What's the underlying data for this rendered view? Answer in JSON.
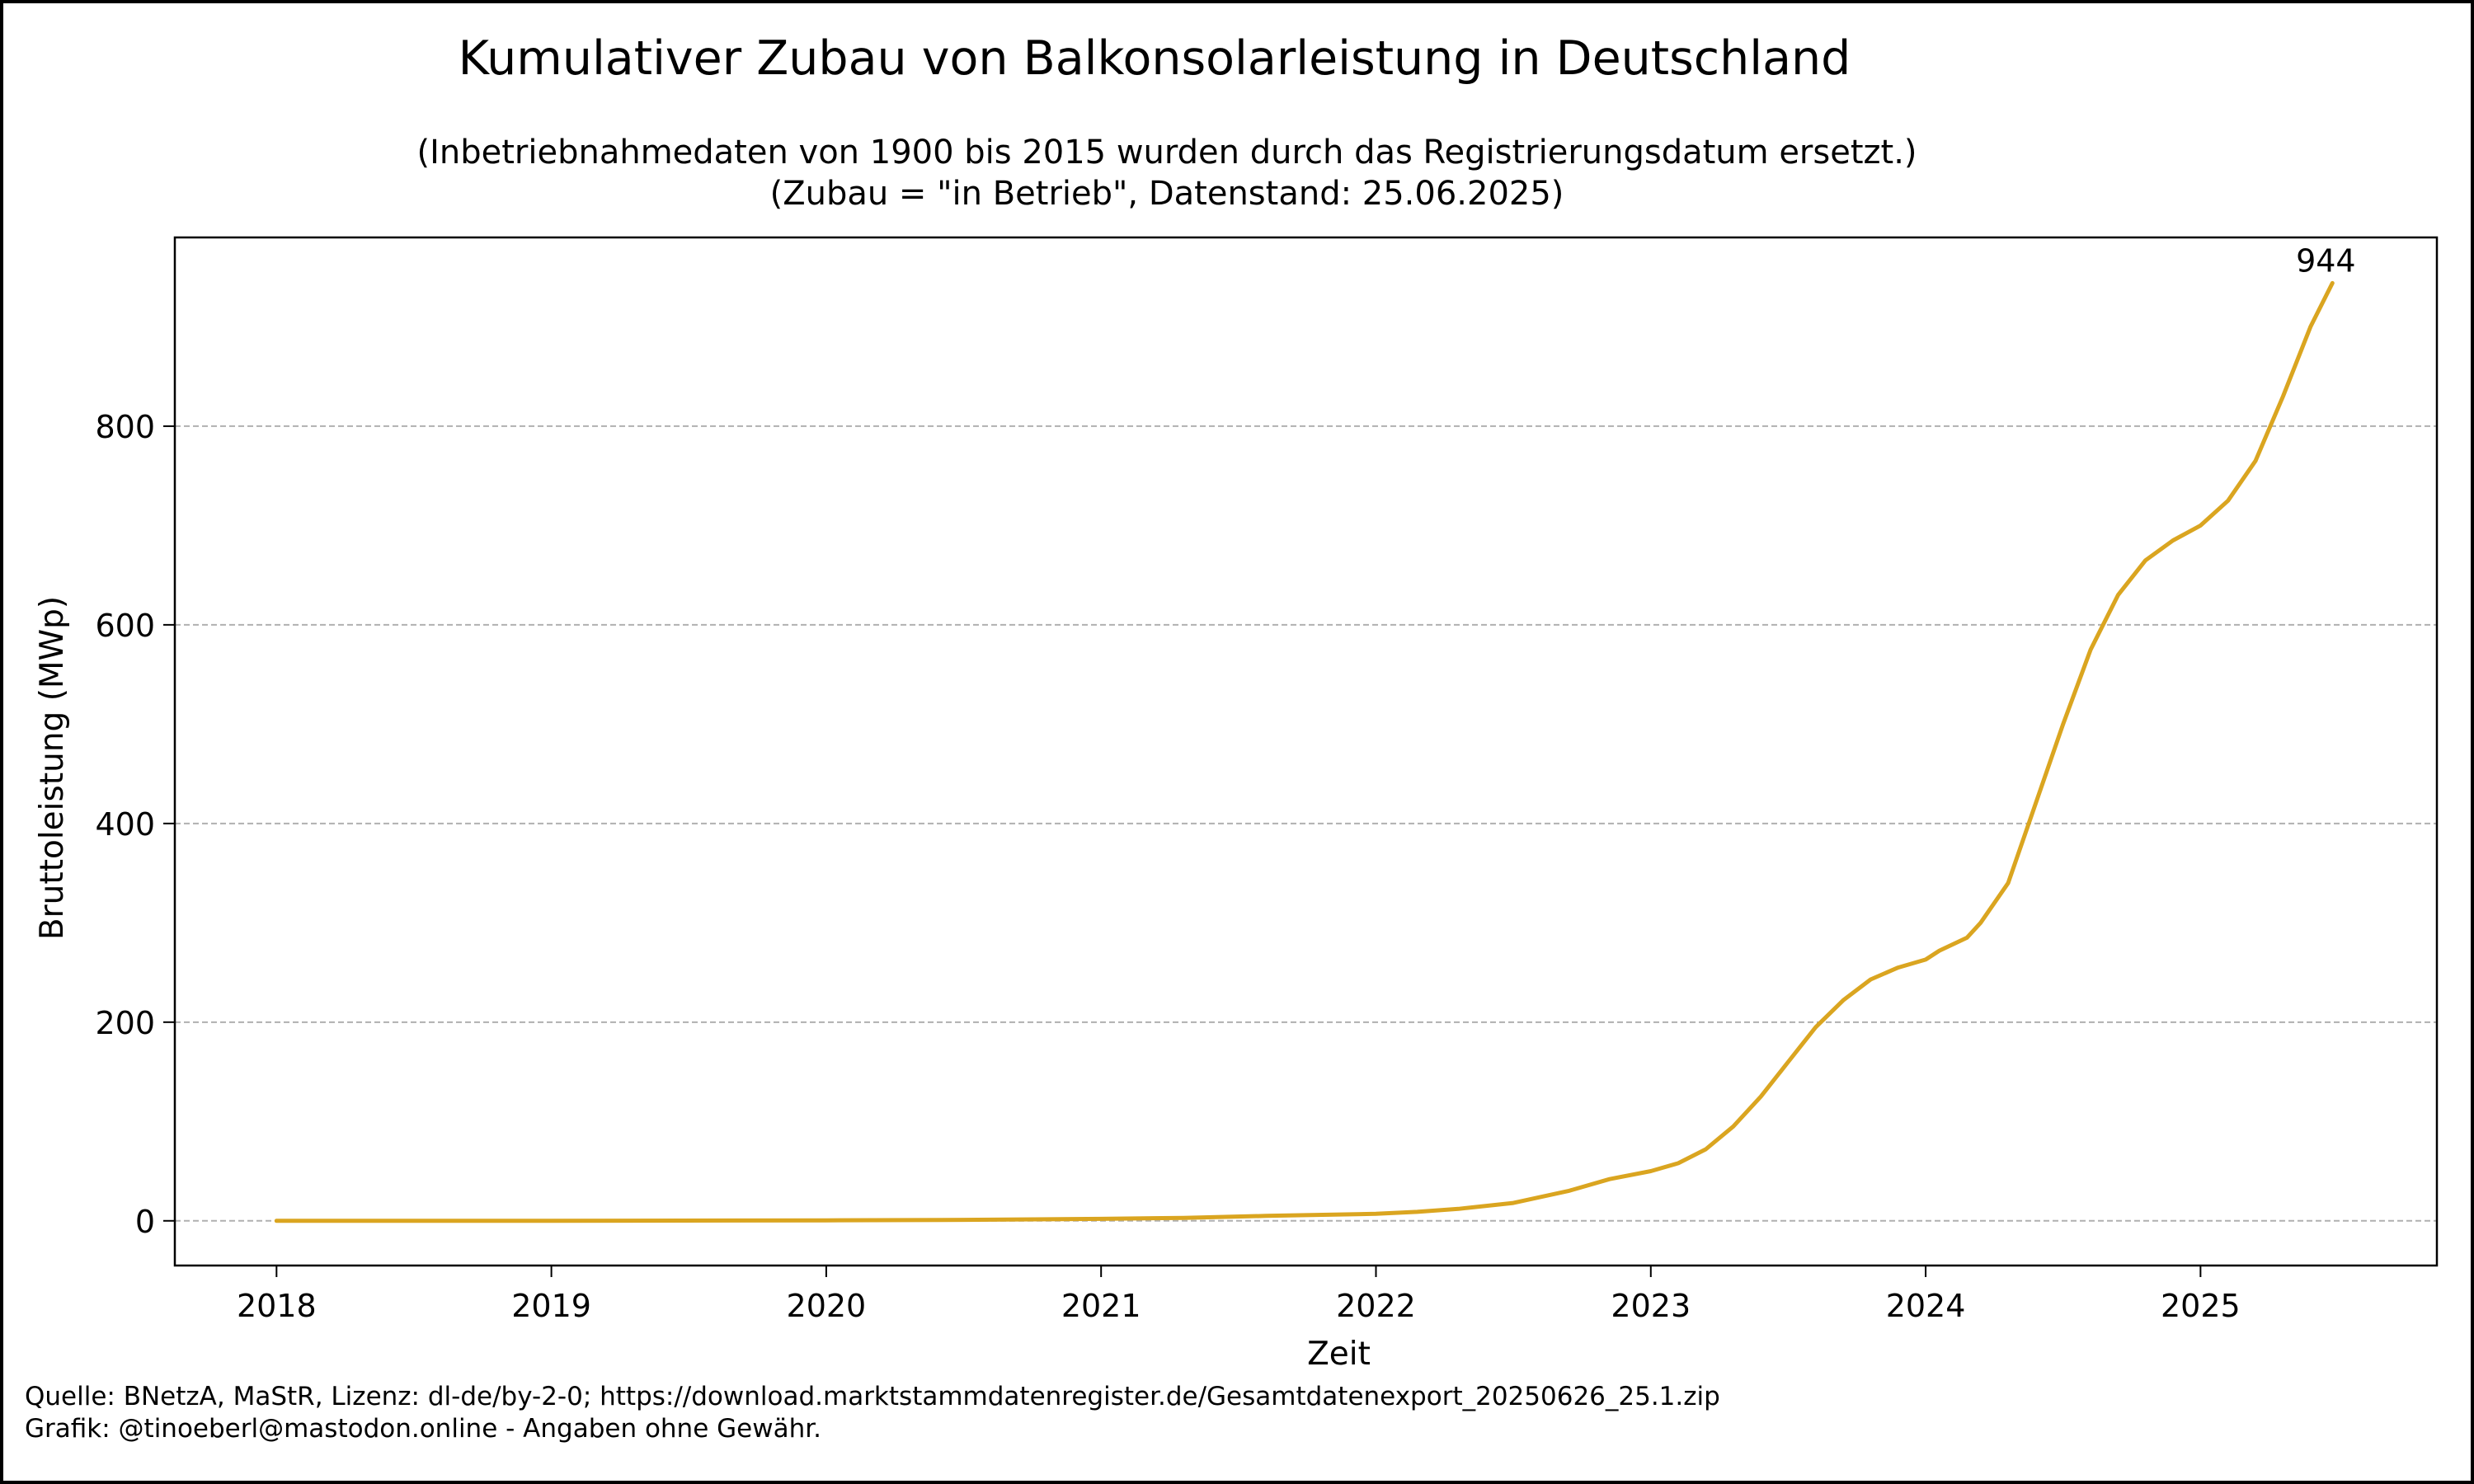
{
  "chart_data": {
    "type": "line",
    "title": "Kumulativer Zubau von Balkonsolarleistung in Deutschland",
    "subtitle_lines": [
      "(Inbetriebnahmedaten von 1900 bis 2015 wurden durch das Registrierungsdatum ersetzt.)",
      "(Zubau = \"in Betrieb\", Datenstand: 25.06.2025)"
    ],
    "xlabel": "Zeit",
    "ylabel": "Bruttoleistung (MWp)",
    "xlim": [
      2017.63,
      2025.86
    ],
    "ylim": [
      -45,
      990
    ],
    "x_ticks": [
      "2018",
      "2019",
      "2020",
      "2021",
      "2022",
      "2023",
      "2024",
      "2025"
    ],
    "y_ticks": [
      "0",
      "200",
      "400",
      "600",
      "800"
    ],
    "grid": "y-dashed",
    "line_color": "#DAA520",
    "end_label": "944",
    "series": [
      {
        "x": [
          2018.0,
          2019.0,
          2020.0,
          2020.5,
          2021.0,
          2021.3,
          2021.6,
          2022.0,
          2022.15,
          2022.3,
          2022.5,
          2022.7,
          2022.85,
          2023.0,
          2023.1,
          2023.2,
          2023.3,
          2023.4,
          2023.5,
          2023.6,
          2023.7,
          2023.8,
          2023.9,
          2024.0,
          2024.05,
          2024.15,
          2024.2,
          2024.3,
          2024.4,
          2024.5,
          2024.6,
          2024.7,
          2024.8,
          2024.9,
          2025.0,
          2025.1,
          2025.2,
          2025.3,
          2025.4,
          2025.48
        ],
        "y": [
          0,
          0,
          0.5,
          1,
          2,
          3,
          5,
          7,
          9,
          12,
          18,
          30,
          42,
          50,
          58,
          72,
          95,
          125,
          160,
          195,
          222,
          243,
          255,
          263,
          272,
          285,
          300,
          340,
          420,
          500,
          575,
          630,
          665,
          685,
          700,
          725,
          765,
          830,
          900,
          944
        ]
      }
    ]
  },
  "footer": {
    "source": "Quelle: BNetzA, MaStR, Lizenz: dl-de/by-2-0; https://download.marktstammdatenregister.de/Gesamtdatenexport_20250626_25.1.zip",
    "credit": "Grafik: @tinoeberl@mastodon.online - Angaben ohne Gewähr."
  }
}
